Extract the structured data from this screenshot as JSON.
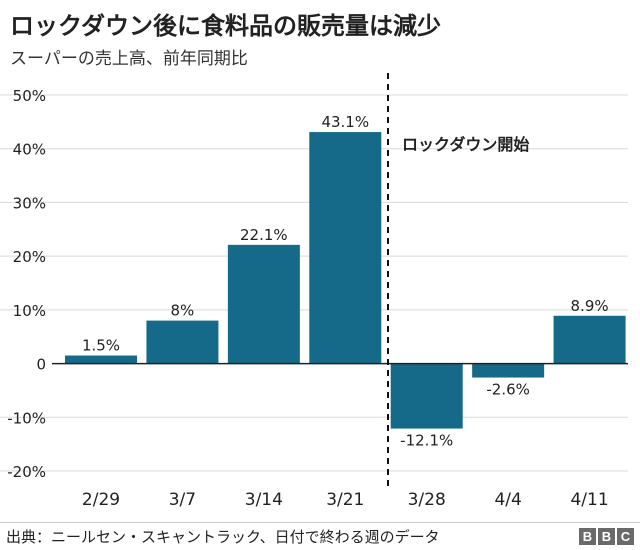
{
  "header": {
    "title": "ロックダウン後に食料品の販売量は減少",
    "subtitle": "スーパーの売上高、前年同期比"
  },
  "footer": {
    "source": "出典：ニールセン・スキャントラック、日付で終わる週のデータ",
    "logo_letters": [
      "B",
      "B",
      "C"
    ]
  },
  "colors": {
    "bar": "#156a89",
    "grid": "#d9d9d9",
    "zero_line": "#222222",
    "text": "#222222"
  },
  "chart_data": {
    "type": "bar",
    "title": "ロックダウン後に食料品の販売量は減少",
    "subtitle": "スーパーの売上高、前年同期比",
    "xlabel": "",
    "ylabel": "",
    "categories": [
      "2/29",
      "3/7",
      "3/14",
      "3/21",
      "3/28",
      "4/4",
      "4/11"
    ],
    "values": [
      1.5,
      8,
      22.1,
      43.1,
      -12.1,
      -2.6,
      8.9
    ],
    "value_labels": [
      "1.5%",
      "8%",
      "22.1%",
      "43.1%",
      "-12.1%",
      "-2.6%",
      "8.9%"
    ],
    "ylim": [
      -20,
      50
    ],
    "yticks": [
      -20,
      -10,
      0,
      10,
      20,
      30,
      40,
      50
    ],
    "ytick_labels": [
      "-20%",
      "-10%",
      "0",
      "10%",
      "20%",
      "30%",
      "40%",
      "50%"
    ],
    "grid": true,
    "annotation": {
      "text": "ロックダウン開始",
      "between_categories": [
        "3/21",
        "3/28"
      ],
      "style": "dashed-vertical-line"
    }
  }
}
